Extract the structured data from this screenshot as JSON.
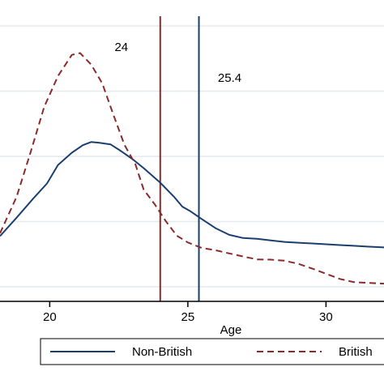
{
  "chart_data": {
    "type": "line",
    "xlabel": "Age",
    "ylabel": "",
    "xlim": [
      18.2,
      32.1
    ],
    "ylim": [
      0.0,
      1.0
    ],
    "xticks": [
      20,
      25,
      30
    ],
    "grid": "horizontal",
    "legend_position": "bottom",
    "series": [
      {
        "name": "Non-British",
        "color": "#1a3f6f",
        "style": "solid",
        "x": [
          18.2,
          18.8,
          19.4,
          19.9,
          20.3,
          20.8,
          21.2,
          21.5,
          21.8,
          22.2,
          22.6,
          23.0,
          23.4,
          24.0,
          24.5,
          24.8,
          25.1,
          25.5,
          26.0,
          26.5,
          27.0,
          27.5,
          28.0,
          28.5,
          29.0,
          29.5,
          30.0,
          30.5,
          31.0,
          31.5,
          32.1
        ],
        "y": [
          0.194,
          0.265,
          0.338,
          0.396,
          0.467,
          0.514,
          0.543,
          0.555,
          0.552,
          0.546,
          0.519,
          0.489,
          0.455,
          0.399,
          0.345,
          0.307,
          0.289,
          0.26,
          0.225,
          0.199,
          0.187,
          0.184,
          0.178,
          0.172,
          0.169,
          0.166,
          0.163,
          0.16,
          0.157,
          0.154,
          0.151
        ]
      },
      {
        "name": "British",
        "color": "#8b2a2a",
        "style": "dashed",
        "x": [
          18.2,
          18.8,
          19.3,
          19.8,
          20.3,
          20.8,
          21.1,
          21.5,
          21.9,
          22.3,
          22.7,
          23.1,
          23.4,
          23.8,
          24.2,
          24.6,
          25.0,
          25.5,
          26.0,
          26.5,
          27.0,
          27.5,
          28.0,
          28.5,
          29.0,
          29.5,
          30.0,
          30.5,
          31.0,
          31.5,
          32.1
        ],
        "y": [
          0.205,
          0.345,
          0.513,
          0.69,
          0.808,
          0.889,
          0.896,
          0.852,
          0.78,
          0.661,
          0.545,
          0.47,
          0.373,
          0.316,
          0.252,
          0.196,
          0.17,
          0.149,
          0.14,
          0.128,
          0.116,
          0.105,
          0.104,
          0.1,
          0.088,
          0.07,
          0.05,
          0.03,
          0.018,
          0.015,
          0.012
        ]
      }
    ],
    "vlines": [
      {
        "x": 24.0,
        "label": "24",
        "color": "#8b2a2a"
      },
      {
        "x": 25.4,
        "label": "25.4",
        "color": "#1a3f6f"
      }
    ]
  },
  "legend": {
    "items": [
      {
        "label": "Non-British",
        "color": "#1a3f6f",
        "style": "solid"
      },
      {
        "label": "British",
        "color": "#8b2a2a",
        "style": "dashed"
      }
    ]
  }
}
